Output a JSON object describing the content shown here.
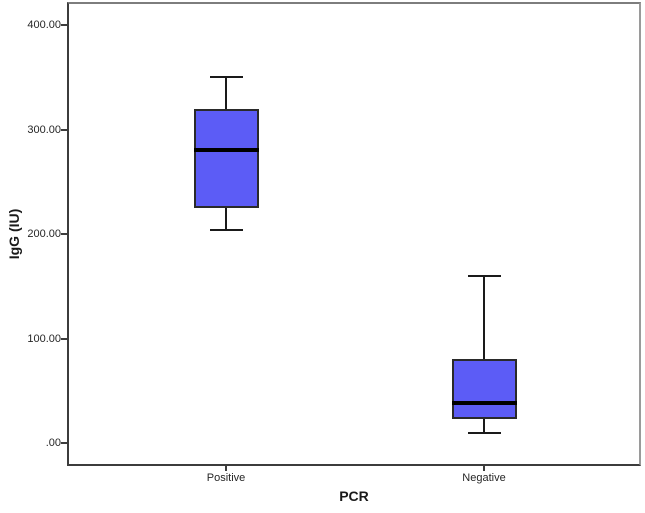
{
  "chart_data": {
    "type": "box",
    "title": "",
    "xlabel": "PCR",
    "ylabel": "IgG (IU)",
    "categories": [
      "Positive",
      "Negative"
    ],
    "series": [
      {
        "name": "Positive",
        "whisker_low": 204,
        "q1": 225,
        "median": 280,
        "q3": 320,
        "whisker_high": 350
      },
      {
        "name": "Negative",
        "whisker_low": 10,
        "q1": 23,
        "median": 38,
        "q3": 80,
        "whisker_high": 160
      }
    ],
    "yticks": [
      {
        "value": 0,
        "label": ".00"
      },
      {
        "value": 100,
        "label": "100.00"
      },
      {
        "value": 200,
        "label": "200.00"
      },
      {
        "value": 300,
        "label": "300.00"
      },
      {
        "value": 400,
        "label": "400.00"
      }
    ],
    "ylim": [
      -22,
      422
    ],
    "grid": false,
    "legend": false,
    "colors": {
      "box_fill": "#5C5CF6",
      "box_border": "#2a2a2a",
      "median": "#000000",
      "whisker": "#1a1a1a"
    }
  }
}
